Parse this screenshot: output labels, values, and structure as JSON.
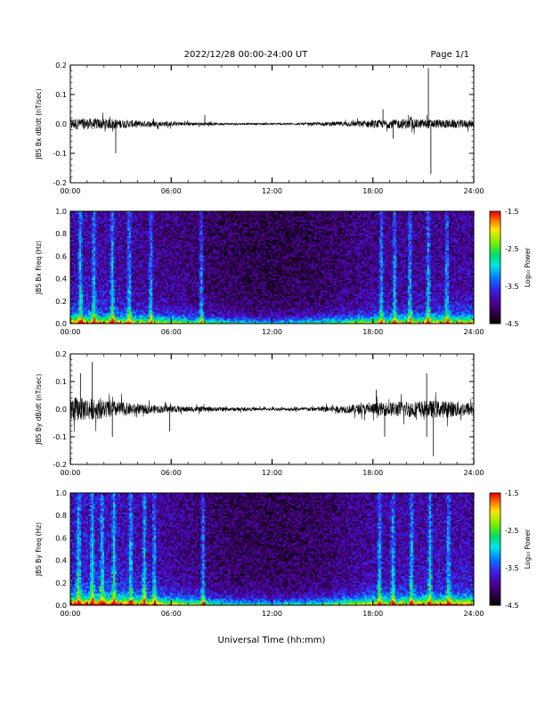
{
  "header": {
    "title": "2022/12/28  00:00-24:00 UT",
    "page": "Page 1/1"
  },
  "xlabel": "Universal Time (hh:mm)",
  "chart_data": [
    {
      "type": "line",
      "ylabel": "JBS Bx dB/dt (nT/sec)",
      "xlim": [
        0,
        24
      ],
      "ylim": [
        -0.2,
        0.2
      ],
      "x_ticks": [
        "00:00",
        "06:00",
        "12:00",
        "18:00",
        "24:00"
      ],
      "y_ticks": [
        "0.2",
        "0.1",
        "0.0",
        "-0.1",
        "-0.2"
      ],
      "amplitude_envelope": {
        "x": [
          0,
          2,
          4,
          6,
          8,
          10,
          12,
          14,
          16,
          18,
          20,
          22,
          24
        ],
        "y": [
          0.02,
          0.018,
          0.012,
          0.008,
          0.005,
          0.003,
          0.003,
          0.004,
          0.008,
          0.013,
          0.017,
          0.015,
          0.013
        ]
      },
      "spikes": [
        {
          "x": 2.7,
          "y": -0.1
        },
        {
          "x": 8.0,
          "y": 0.03
        },
        {
          "x": 18.6,
          "y": 0.05
        },
        {
          "x": 21.3,
          "y": 0.19
        },
        {
          "x": 21.45,
          "y": -0.17
        },
        {
          "x": 19.2,
          "y": -0.05
        }
      ]
    },
    {
      "type": "heatmap",
      "ylabel": "JBS Bx Freq (Hz)",
      "xlim": [
        0,
        24
      ],
      "ylim": [
        0,
        1
      ],
      "x_ticks": [
        "00:00",
        "06:00",
        "12:00",
        "18:00",
        "24:00"
      ],
      "y_ticks": [
        "1.0",
        "0.8",
        "0.6",
        "0.4",
        "0.2",
        "0.0"
      ],
      "colorbar": {
        "label": "Log₁₀ Power",
        "range": [
          -4.5,
          -1.5
        ],
        "ticks": [
          "-1.5",
          "-2.5",
          "-3.5",
          "-4.5"
        ]
      },
      "bright_columns": [
        0.6,
        1.4,
        2.5,
        3.5,
        4.8,
        7.8,
        18.5,
        19.3,
        20.2,
        21.3,
        22.4
      ],
      "time_activity": {
        "x": [
          0,
          3,
          6,
          9,
          12,
          15,
          18,
          21,
          24
        ],
        "y": [
          0.75,
          0.65,
          0.5,
          0.3,
          0.2,
          0.3,
          0.55,
          0.6,
          0.65
        ]
      }
    },
    {
      "type": "line",
      "ylabel": "JBS By dB/dt (nT/sec)",
      "xlim": [
        0,
        24
      ],
      "ylim": [
        -0.2,
        0.2
      ],
      "x_ticks": [
        "00:00",
        "06:00",
        "12:00",
        "18:00",
        "24:00"
      ],
      "y_ticks": [
        "0.2",
        "0.1",
        "0.0",
        "-0.1",
        "-0.2"
      ],
      "amplitude_envelope": {
        "x": [
          0,
          2,
          4,
          6,
          8,
          10,
          12,
          14,
          16,
          18,
          20,
          22,
          24
        ],
        "y": [
          0.045,
          0.035,
          0.018,
          0.012,
          0.009,
          0.006,
          0.005,
          0.007,
          0.013,
          0.022,
          0.03,
          0.032,
          0.025
        ]
      },
      "spikes": [
        {
          "x": 1.3,
          "y": 0.17
        },
        {
          "x": 0.6,
          "y": 0.13
        },
        {
          "x": 2.5,
          "y": -0.1
        },
        {
          "x": 5.9,
          "y": -0.08
        },
        {
          "x": 18.2,
          "y": 0.07
        },
        {
          "x": 18.7,
          "y": -0.1
        },
        {
          "x": 21.2,
          "y": 0.13
        },
        {
          "x": 21.6,
          "y": -0.17
        },
        {
          "x": 21.2,
          "y": -0.1
        }
      ]
    },
    {
      "type": "heatmap",
      "ylabel": "JBS By Freq (Hz)",
      "xlim": [
        0,
        24
      ],
      "ylim": [
        0,
        1
      ],
      "x_ticks": [
        "00:00",
        "06:00",
        "12:00",
        "18:00",
        "24:00"
      ],
      "y_ticks": [
        "1.0",
        "0.8",
        "0.6",
        "0.4",
        "0.2",
        "0.0"
      ],
      "colorbar": {
        "label": "Log₁₀ Power",
        "range": [
          -4.5,
          -1.5
        ],
        "ticks": [
          "-1.5",
          "-2.5",
          "-3.5",
          "-4.5"
        ]
      },
      "bright_columns": [
        0.5,
        1.3,
        1.9,
        2.6,
        3.6,
        4.4,
        5.0,
        7.9,
        18.4,
        19.2,
        20.3,
        21.4,
        22.5
      ],
      "time_activity": {
        "x": [
          0,
          3,
          6,
          9,
          12,
          15,
          18,
          21,
          24
        ],
        "y": [
          0.9,
          0.8,
          0.6,
          0.35,
          0.25,
          0.35,
          0.65,
          0.7,
          0.75
        ]
      }
    }
  ]
}
